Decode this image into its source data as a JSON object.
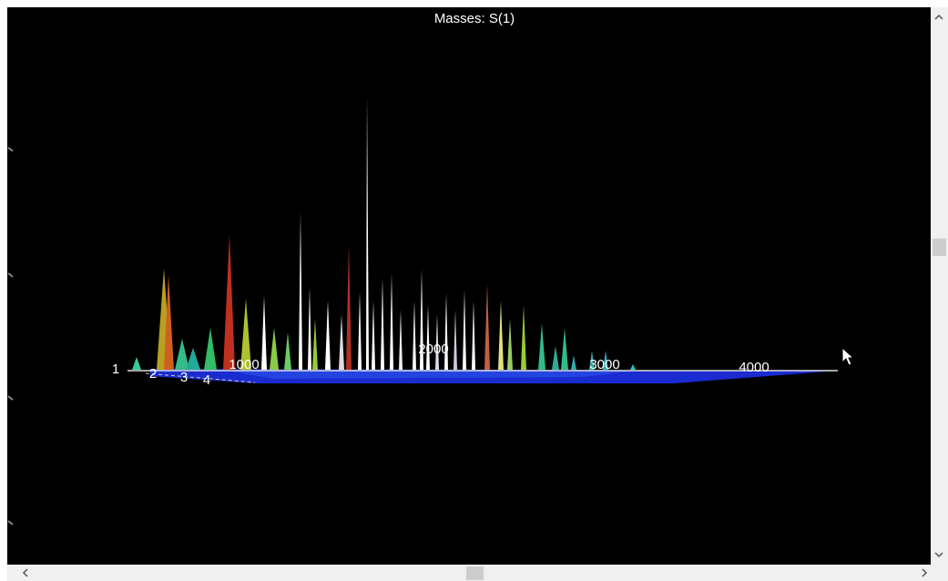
{
  "title": "Masses: S(1)",
  "axis_labels": {
    "depth": [
      "1",
      "2",
      "3",
      "4"
    ],
    "mass": [
      "1000",
      "2000",
      "3000",
      "4000"
    ]
  }
}
